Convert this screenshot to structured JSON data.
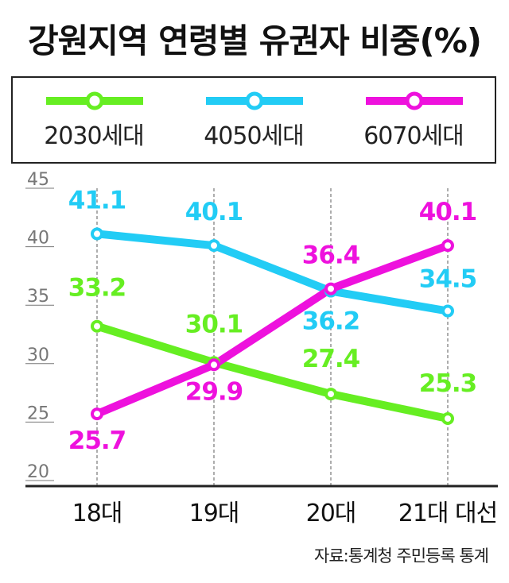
{
  "title": "강원지역 연령별 유권자 비중(%)",
  "source": "자료:통계청 주민등록 통계",
  "colors": {
    "s2030": "#66ee22",
    "s4050": "#22ccf5",
    "s6070": "#ee11dd"
  },
  "chart_data": {
    "type": "line",
    "title": "강원지역 연령별 유권자 비중(%)",
    "categories": [
      "18대",
      "19대",
      "20대",
      "21대 대선"
    ],
    "ylim": [
      20,
      45
    ],
    "yticks": [
      20,
      25,
      30,
      35,
      40,
      45
    ],
    "grid": "dashed vertical lines at categories",
    "legend": "top",
    "series": [
      {
        "name": "2030세대",
        "color": "#66ee22",
        "values": [
          33.2,
          30.1,
          27.4,
          25.3
        ],
        "labels": [
          "33.2",
          "30.1",
          "27.4",
          "25.3"
        ]
      },
      {
        "name": "4050세대",
        "color": "#22ccf5",
        "values": [
          41.1,
          40.1,
          36.2,
          34.5
        ],
        "labels": [
          "41.1",
          "40.1",
          "36.2",
          "34.5"
        ]
      },
      {
        "name": "6070세대",
        "color": "#ee11dd",
        "values": [
          25.7,
          29.9,
          36.4,
          40.1
        ],
        "labels": [
          "25.7",
          "29.9",
          "36.4",
          "40.1"
        ]
      }
    ]
  }
}
